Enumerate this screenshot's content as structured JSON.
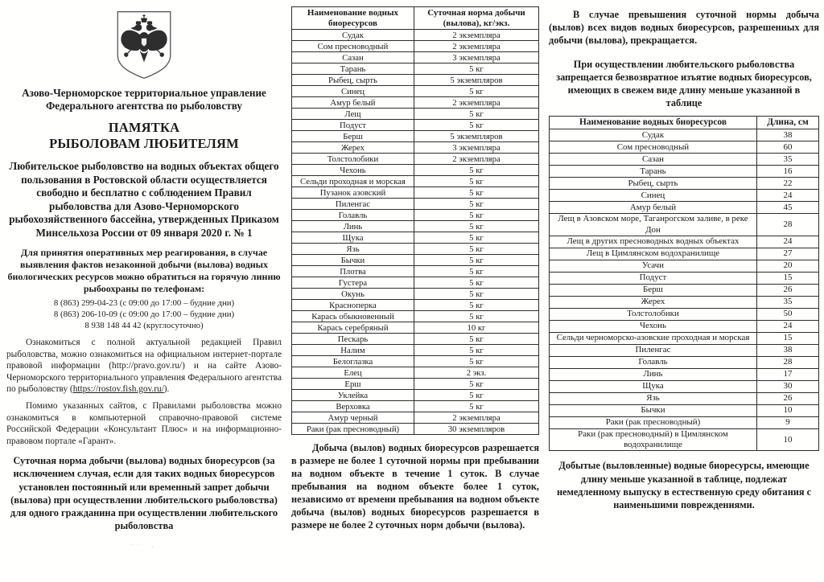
{
  "left": {
    "emblem": "russia-coat-of-arms-icon",
    "org_name": "Азово-Черноморское территориальное управление Федерального агентства по рыболовству",
    "title_line1": "ПАМЯТКА",
    "title_line2": "РЫБОЛОВАМ ЛЮБИТЕЛЯМ",
    "intro": "Любительское рыболовство на водных объектах общего пользования в Ростовской области осуществляется свободно и бесплатно с соблюдением Правил рыболовства для Азово-Черноморского рыбохозяйственного бассейна, утвержденных Приказом Минсельхоза России от 09 января 2020 г. № 1",
    "hotline_intro": "Для принятия оперативных мер реагирования, в случае выявления фактов незаконной добычи (вылова) водных биологических ресурсов можно обратиться на горячую линию рыбоохраны по телефонам:",
    "phones": [
      "8 (863) 299-04-23 (с 09:00 до 17:00 – будние дни)",
      "8 (863) 206-10-09 (с 09:00 до 17:00 – будние дни)",
      "8 938 148 44 42 (круглосуточно)"
    ],
    "rules_para_a": "Ознакомиться с полной актуальной редакцией Правил рыболовства, можно ознакомиться на официальном интернет-портале правовой информации (",
    "rules_link_pravo": "http://pravo.gov.ru/",
    "rules_para_b": ") и на сайте Азово-Черноморского территориального управления Федерального агентства по рыболовству (",
    "rules_link_rostov": "https://rostov.fish.gov.ru/",
    "rules_para_c": ").",
    "consultant_para": "Помимо указанных сайтов, с Правилами рыболовства можно ознакомиться в компьютерной справочно-правовой системе Российской Федерации «Консультант Плюс» и на информационно-правовом портале «Гарант».",
    "daily_norm_heading": "Суточная норма добычи (вылова) водных биоресурсов (за исключением случая, если для таких водных биоресурсов установлен постоянный или временный запрет добычи (вылова) при осуществлении любительского рыболовства) для одного гражданина при осуществлении любительского рыболовства"
  },
  "norm_table": {
    "col1": "Наименование водных биоресурсов",
    "col2": "Суточная норма добычи (вылова), кг/экз.",
    "rows": [
      [
        "Судак",
        "2 экземпляра"
      ],
      [
        "Сом пресноводный",
        "2 экземпляра"
      ],
      [
        "Сазан",
        "3 экземпляра"
      ],
      [
        "Тарань",
        "5 кг"
      ],
      [
        "Рыбец, сырть",
        "5 экземпляров"
      ],
      [
        "Синец",
        "5 кг"
      ],
      [
        "Амур белый",
        "2 экземпляра"
      ],
      [
        "Лещ",
        "5 кг"
      ],
      [
        "Подуст",
        "5 кг"
      ],
      [
        "Берш",
        "5 экземпляров"
      ],
      [
        "Жерех",
        "3 экземпляра"
      ],
      [
        "Толстолобики",
        "2 экземпляра"
      ],
      [
        "Чехонь",
        "5 кг"
      ],
      [
        "Сельди проходная и морская",
        "5 кг"
      ],
      [
        "Пузанок азовский",
        "5 кг"
      ],
      [
        "Пиленгас",
        "5 кг"
      ],
      [
        "Голавль",
        "5 кг"
      ],
      [
        "Линь",
        "5 кг"
      ],
      [
        "Щука",
        "5 кг"
      ],
      [
        "Язь",
        "5 кг"
      ],
      [
        "Бычки",
        "5 кг"
      ],
      [
        "Плотва",
        "5 кг"
      ],
      [
        "Густера",
        "5 кг"
      ],
      [
        "Окунь",
        "5 кг"
      ],
      [
        "Красноперка",
        "5 кг"
      ],
      [
        "Карась обыкновенный",
        "5 кг"
      ],
      [
        "Карась серебряный",
        "10 кг"
      ],
      [
        "Пескарь",
        "5 кг"
      ],
      [
        "Налим",
        "5 кг"
      ],
      [
        "Белоглазка",
        "5 кг"
      ],
      [
        "Елец",
        "2 экз."
      ],
      [
        "Ерш",
        "5 кг"
      ],
      [
        "Уклейка",
        "5 кг"
      ],
      [
        "Верховка",
        "5 кг"
      ],
      [
        "Амур черный",
        "2 экземпляра"
      ],
      [
        "Раки (рак пресноводный)",
        "30 экземпляров"
      ]
    ]
  },
  "middle": {
    "catch_rules_para": "Добыча (вылов) водных биоресурсов разрешается в размере не более 1 суточной нормы при пребывании на водном объекте в течение 1 суток. В случае пребывания на водном объекте более 1 суток, независимо от времени пребывания на водном объекте добыча (вылов) водных биоресурсов разрешается в размере не более 2 суточных норм добычи (вылова)."
  },
  "right": {
    "exceed_para": "В случае превышения суточной нормы добыча (вылов) всех видов водных биоресурсов, разрешенных для добычи (вылова), прекращается.",
    "min_length_heading": "При осуществлении любительского рыболовства запрещается безвозвратное изъятие водных биоресурсов, имеющих в свежем виде длину меньше указанной в таблице",
    "release_para": "Добытые (выловленные) водные биоресурсы, имеющие длину меньше указанной в таблице, подлежат немедленному выпуску в естественную среду обитания с наименьшими повреждениями."
  },
  "length_table": {
    "col1": "Наименование водных биоресурсов",
    "col2": "Длина, см",
    "rows": [
      [
        "Судак",
        "38"
      ],
      [
        "Сом пресноводный",
        "60"
      ],
      [
        "Сазан",
        "35"
      ],
      [
        "Тарань",
        "16"
      ],
      [
        "Рыбец, сырть",
        "22"
      ],
      [
        "Синец",
        "24"
      ],
      [
        "Амур белый",
        "45"
      ],
      [
        "Лещ в Азовском море, Таганрогском заливе, в реке Дон",
        "28"
      ],
      [
        "Лещ в других пресноводных водных объектах",
        "24"
      ],
      [
        "Лещ в Цимлянском водохранилище",
        "27"
      ],
      [
        "Усачи",
        "20"
      ],
      [
        "Подуст",
        "15"
      ],
      [
        "Берш",
        "26"
      ],
      [
        "Жерех",
        "35"
      ],
      [
        "Толстолобики",
        "50"
      ],
      [
        "Чехонь",
        "24"
      ],
      [
        "Сельди черноморско-азовские проходная и морская",
        "15"
      ],
      [
        "Пиленгас",
        "38"
      ],
      [
        "Голавль",
        "28"
      ],
      [
        "Линь",
        "17"
      ],
      [
        "Щука",
        "30"
      ],
      [
        "Язь",
        "26"
      ],
      [
        "Бычки",
        "10"
      ],
      [
        "Раки (рак пресноводный)",
        "9"
      ],
      [
        "Раки (рак пресноводный) в Цимлянском водохранилище",
        "10"
      ]
    ]
  }
}
